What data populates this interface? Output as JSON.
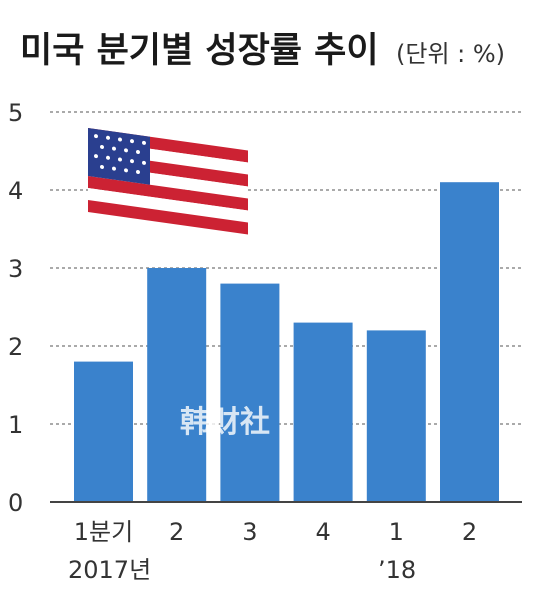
{
  "title": "미국 분기별 성장률 추이",
  "unit": "(단위 : %)",
  "watermark": "韩财社",
  "year_labels": [
    "2017년",
    "’18"
  ],
  "colors": {
    "bar": "#3a82cc",
    "grid": "#555555"
  },
  "chart_data": {
    "type": "bar",
    "categories": [
      "1분기",
      "2",
      "3",
      "4",
      "1",
      "2"
    ],
    "values": [
      1.8,
      3.0,
      2.8,
      2.3,
      2.2,
      4.1
    ],
    "ylim": [
      0,
      5
    ],
    "yticks": [
      "0",
      "1",
      "2",
      "3",
      "4",
      "5"
    ],
    "grid": true,
    "xlabel": "",
    "ylabel": ""
  }
}
